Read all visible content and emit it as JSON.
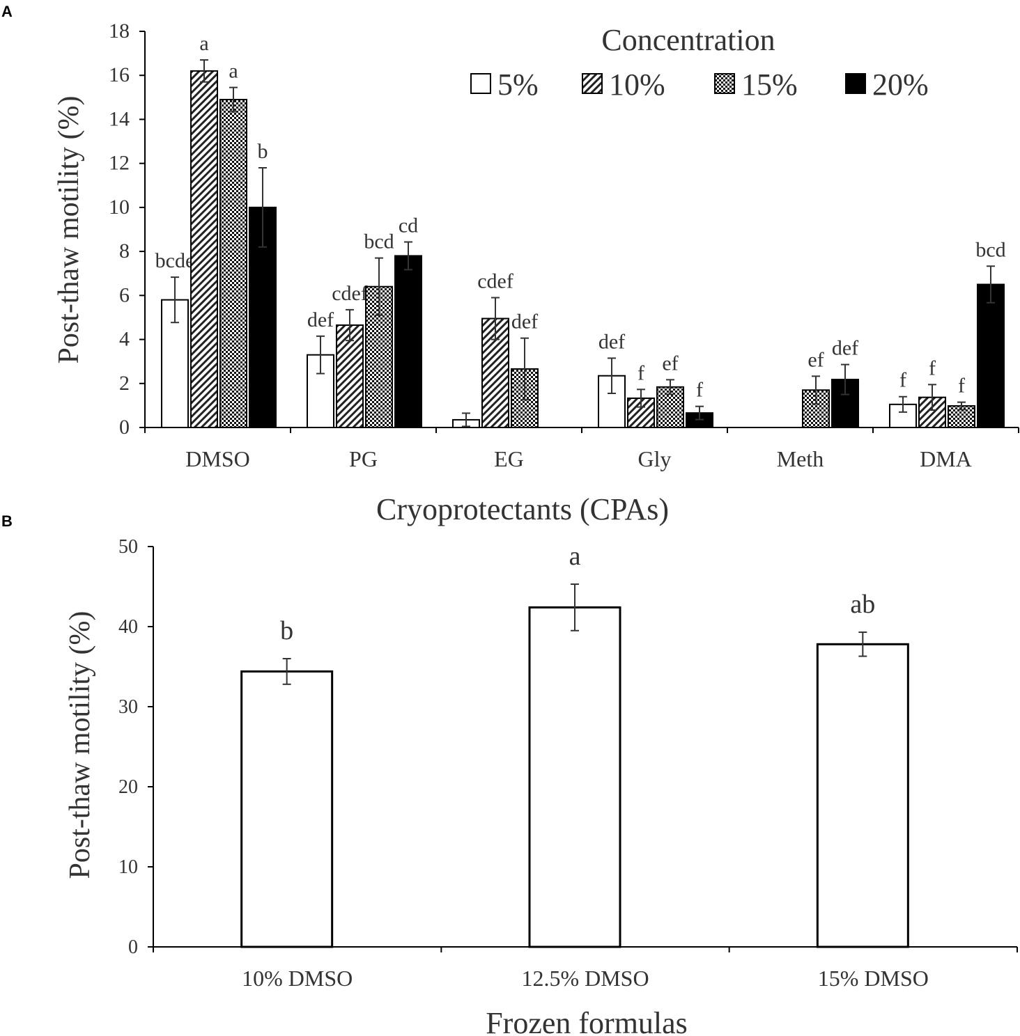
{
  "chart_data": [
    {
      "panel_label": "A",
      "type": "bar",
      "title": "",
      "xlabel": "Cryoprotectants (CPAs)",
      "ylabel": "Post-thaw motility (%)",
      "ylim": [
        0,
        18
      ],
      "yticks": [
        0,
        2,
        4,
        6,
        8,
        10,
        12,
        14,
        16,
        18
      ],
      "grid": false,
      "legend": {
        "title": "Concentration",
        "placement": "top-right",
        "entries": [
          "5%",
          "10%",
          "15%",
          "20%"
        ]
      },
      "categories": [
        "DMSO",
        "PG",
        "EG",
        "Gly",
        "Meth",
        "DMA"
      ],
      "series": [
        {
          "name": "5%",
          "pattern": "white",
          "values": [
            5.8,
            3.3,
            0.35,
            2.35,
            0,
            1.05
          ],
          "errors": [
            1.03,
            0.85,
            0.3,
            0.8,
            0,
            0.35
          ],
          "letters": [
            "bcde",
            "def",
            "",
            "def",
            "",
            "f"
          ]
        },
        {
          "name": "10%",
          "pattern": "diagonal-hatch",
          "values": [
            16.2,
            4.65,
            4.95,
            1.33,
            0,
            1.37
          ],
          "errors": [
            0.5,
            0.7,
            0.95,
            0.4,
            0,
            0.58
          ],
          "letters": [
            "a",
            "cdef",
            "cdef",
            "f",
            "",
            "f"
          ]
        },
        {
          "name": "15%",
          "pattern": "checker",
          "values": [
            14.9,
            6.4,
            2.66,
            1.84,
            1.7,
            0.98
          ],
          "errors": [
            0.55,
            1.3,
            1.4,
            0.33,
            0.63,
            0.17
          ],
          "letters": [
            "a",
            "bcd",
            "def",
            "ef",
            "ef",
            "f"
          ]
        },
        {
          "name": "20%",
          "pattern": "black",
          "values": [
            10.0,
            7.8,
            0,
            0.66,
            2.18,
            6.5
          ],
          "errors": [
            1.8,
            0.63,
            0,
            0.3,
            0.68,
            0.83
          ],
          "letters": [
            "b",
            "cd",
            "",
            "f",
            "def",
            "bcd"
          ]
        }
      ]
    },
    {
      "panel_label": "B",
      "type": "bar",
      "title": "",
      "xlabel": "Frozen formulas",
      "ylabel": "Post-thaw motility (%)",
      "ylim": [
        0,
        50
      ],
      "yticks": [
        0,
        10,
        20,
        30,
        40,
        50
      ],
      "grid": false,
      "categories": [
        "10% DMSO",
        "12.5% DMSO",
        "15% DMSO"
      ],
      "values": [
        34.4,
        42.4,
        37.8
      ],
      "errors": [
        1.6,
        2.9,
        1.5
      ],
      "letters": [
        "b",
        "a",
        "ab"
      ]
    }
  ]
}
